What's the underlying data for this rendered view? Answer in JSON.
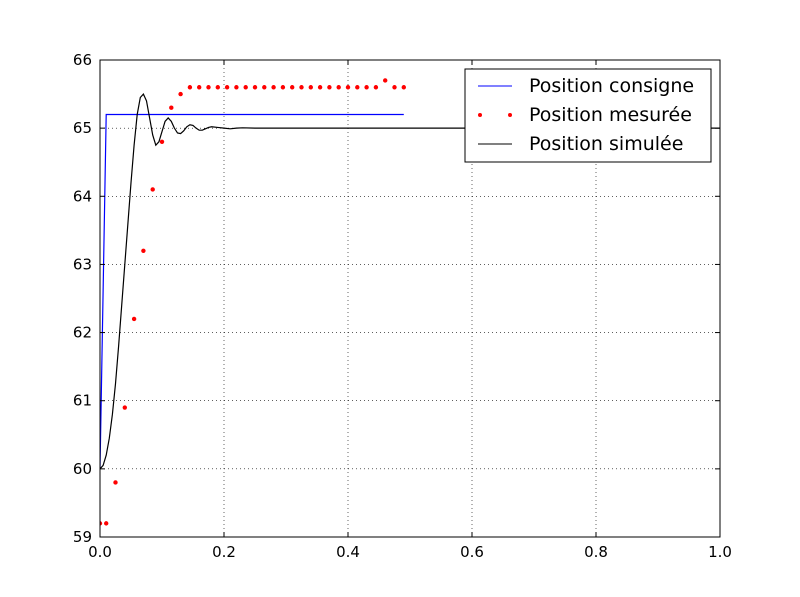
{
  "chart_data": {
    "type": "line",
    "title": "",
    "xlabel": "",
    "ylabel": "",
    "xlim": [
      0.0,
      1.0
    ],
    "ylim": [
      59,
      66
    ],
    "x_ticks": [
      "0.0",
      "0.2",
      "0.4",
      "0.6",
      "0.8",
      "1.0"
    ],
    "y_ticks": [
      "59",
      "60",
      "61",
      "62",
      "63",
      "64",
      "65",
      "66"
    ],
    "grid": true,
    "legend_position": "top-right",
    "series": [
      {
        "name": "Position consigne",
        "style": "line",
        "color": "#0000ff",
        "x": [
          0.0,
          0.01,
          0.49
        ],
        "y": [
          60.0,
          65.2,
          65.2
        ]
      },
      {
        "name": "Position mesurée",
        "style": "markers",
        "color": "#ff0000",
        "x": [
          0.0,
          0.01,
          0.025,
          0.04,
          0.055,
          0.07,
          0.085,
          0.1,
          0.115,
          0.13,
          0.145,
          0.16,
          0.175,
          0.19,
          0.205,
          0.22,
          0.235,
          0.25,
          0.265,
          0.28,
          0.295,
          0.31,
          0.325,
          0.34,
          0.355,
          0.37,
          0.385,
          0.4,
          0.415,
          0.43,
          0.445,
          0.46,
          0.475,
          0.49
        ],
        "y": [
          59.2,
          59.2,
          59.8,
          60.9,
          62.2,
          63.2,
          64.1,
          64.8,
          65.3,
          65.5,
          65.6,
          65.6,
          65.6,
          65.6,
          65.6,
          65.6,
          65.6,
          65.6,
          65.6,
          65.6,
          65.6,
          65.6,
          65.6,
          65.6,
          65.6,
          65.6,
          65.6,
          65.6,
          65.6,
          65.6,
          65.6,
          65.7,
          65.6,
          65.6
        ]
      },
      {
        "name": "Position simulée",
        "style": "line",
        "color": "#000000",
        "x": [
          0.0,
          0.005,
          0.01,
          0.015,
          0.02,
          0.025,
          0.03,
          0.035,
          0.04,
          0.045,
          0.05,
          0.055,
          0.06,
          0.065,
          0.07,
          0.075,
          0.08,
          0.085,
          0.09,
          0.095,
          0.1,
          0.105,
          0.11,
          0.115,
          0.12,
          0.125,
          0.13,
          0.135,
          0.14,
          0.145,
          0.15,
          0.155,
          0.16,
          0.165,
          0.17,
          0.175,
          0.18,
          0.19,
          0.2,
          0.21,
          0.22,
          0.23,
          0.25,
          0.3,
          0.4,
          0.5,
          0.6,
          0.8,
          1.0
        ],
        "y": [
          60.0,
          60.05,
          60.2,
          60.45,
          60.8,
          61.25,
          61.8,
          62.4,
          63.0,
          63.6,
          64.2,
          64.75,
          65.2,
          65.45,
          65.5,
          65.4,
          65.15,
          64.9,
          64.75,
          64.8,
          64.95,
          65.1,
          65.15,
          65.1,
          65.0,
          64.93,
          64.92,
          64.96,
          65.02,
          65.05,
          65.04,
          65.0,
          64.97,
          64.97,
          64.99,
          65.01,
          65.02,
          65.01,
          65.0,
          64.99,
          65.0,
          65.005,
          65.0,
          65.0,
          65.0,
          65.0,
          65.0,
          65.0,
          65.0
        ]
      }
    ]
  }
}
